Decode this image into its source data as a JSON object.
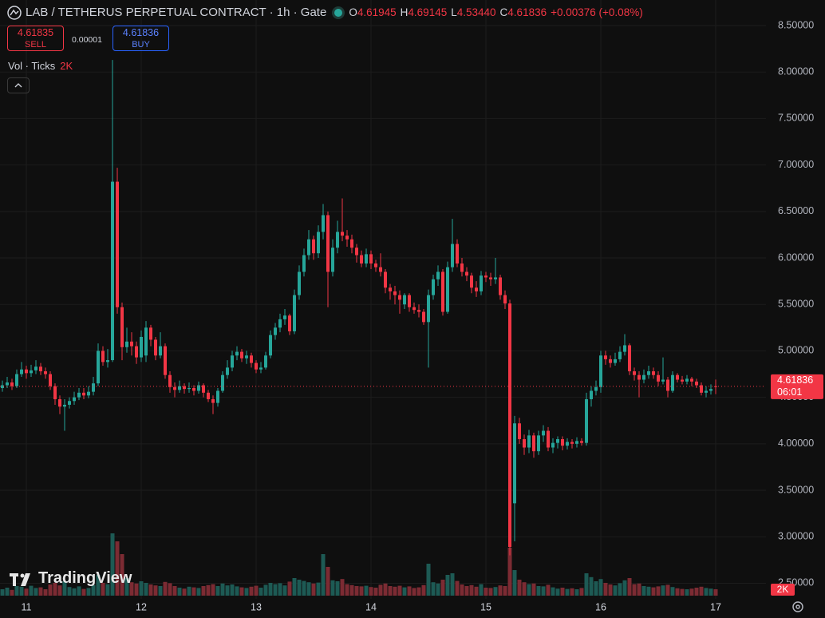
{
  "chart_data": {
    "type": "candlestick",
    "title": "LAB / TETHERUS PERPETUAL CONTRACT · 1h · Gate",
    "ohlc_legend": [
      {
        "key": "O",
        "value": "4.61945"
      },
      {
        "key": "H",
        "value": "4.69145"
      },
      {
        "key": "L",
        "value": "4.53440"
      },
      {
        "key": "C",
        "value": "4.61836"
      }
    ],
    "change": "+0.00376 (+0.08%)",
    "sell": {
      "price": "4.61835",
      "label": "SELL"
    },
    "spread": "0.00001",
    "buy": {
      "price": "4.61836",
      "label": "BUY"
    },
    "volume_legend": "Vol · Ticks",
    "last_volume_label": "2K",
    "countdown": "06:01",
    "watermark": "TradingView",
    "categories": [
      null,
      null,
      null,
      null,
      null,
      "11",
      null,
      null,
      null,
      null,
      null,
      null,
      null,
      null,
      null,
      null,
      null,
      null,
      null,
      null,
      null,
      null,
      null,
      null,
      null,
      null,
      null,
      null,
      null,
      "12",
      null,
      null,
      null,
      null,
      null,
      null,
      null,
      null,
      null,
      null,
      null,
      null,
      null,
      null,
      null,
      null,
      null,
      null,
      null,
      null,
      null,
      null,
      null,
      "13",
      null,
      null,
      null,
      null,
      null,
      null,
      null,
      null,
      null,
      null,
      null,
      null,
      null,
      null,
      null,
      null,
      null,
      null,
      null,
      null,
      null,
      null,
      null,
      "14",
      null,
      null,
      null,
      null,
      null,
      null,
      null,
      null,
      null,
      null,
      null,
      null,
      null,
      null,
      null,
      null,
      null,
      null,
      null,
      null,
      null,
      null,
      null,
      "15",
      null,
      null,
      null,
      null,
      null,
      null,
      null,
      null,
      null,
      null,
      null,
      null,
      null,
      null,
      null,
      null,
      null,
      null,
      null,
      null,
      null,
      null,
      null,
      "16",
      null,
      null,
      null,
      null,
      null,
      null,
      null,
      null,
      null,
      null,
      null,
      null,
      null,
      null,
      null,
      null,
      null,
      null,
      null,
      null,
      null,
      null,
      null,
      "17"
    ],
    "open": [
      4.6,
      4.63,
      4.66,
      4.62,
      4.75,
      4.8,
      4.76,
      4.79,
      4.83,
      4.78,
      4.75,
      4.62,
      4.48,
      4.4,
      4.42,
      4.46,
      4.5,
      4.55,
      4.52,
      4.56,
      4.65,
      5.0,
      4.88,
      4.9,
      6.82,
      5.47,
      5.04,
      5.1,
      5.05,
      4.93,
      4.95,
      5.25,
      5.12,
      4.95,
      5.05,
      4.74,
      4.61,
      4.58,
      4.62,
      4.59,
      4.6,
      4.57,
      4.63,
      4.55,
      4.48,
      4.44,
      4.57,
      4.74,
      4.82,
      4.95,
      4.99,
      4.92,
      4.95,
      4.87,
      4.8,
      4.82,
      4.95,
      5.17,
      5.25,
      5.34,
      5.38,
      5.21,
      5.6,
      5.85,
      6.03,
      6.2,
      6.05,
      6.28,
      6.46,
      5.85,
      6.11,
      6.28,
      6.24,
      6.2,
      6.11,
      6.03,
      5.94,
      6.04,
      5.94,
      5.9,
      5.85,
      5.68,
      5.64,
      5.6,
      5.5,
      5.6,
      5.47,
      5.44,
      5.42,
      5.31,
      5.6,
      5.77,
      5.85,
      5.42,
      5.9,
      6.15,
      5.94,
      5.85,
      5.81,
      5.68,
      5.64,
      5.81,
      5.79,
      5.77,
      5.79,
      5.6,
      5.51,
      3.36,
      4.22,
      4.05,
      3.96,
      4.09,
      3.92,
      4.09,
      4.14,
      3.96,
      4.01,
      4.05,
      3.98,
      4.02,
      4.0,
      4.03,
      4.01,
      4.48,
      4.57,
      4.61,
      4.95,
      4.91,
      4.87,
      4.91,
      4.99,
      5.06,
      4.78,
      4.74,
      4.69,
      4.74,
      4.78,
      4.74,
      4.67,
      4.69,
      4.57,
      4.74,
      4.69,
      4.67,
      4.7,
      4.67,
      4.63,
      4.55,
      4.57,
      4.61945
    ],
    "high": [
      4.68,
      4.72,
      4.7,
      4.8,
      4.88,
      4.84,
      4.85,
      4.9,
      4.87,
      4.82,
      4.78,
      4.65,
      4.52,
      4.48,
      4.5,
      4.56,
      4.6,
      4.6,
      4.62,
      4.72,
      5.08,
      5.05,
      5.02,
      8.13,
      6.97,
      5.52,
      5.25,
      5.2,
      5.1,
      5.22,
      5.32,
      5.28,
      5.15,
      5.2,
      5.08,
      4.78,
      4.66,
      4.68,
      4.65,
      4.66,
      4.63,
      4.67,
      4.65,
      4.58,
      4.52,
      4.6,
      4.78,
      4.9,
      5.0,
      5.05,
      5.02,
      5.0,
      4.98,
      4.9,
      4.88,
      4.99,
      5.22,
      5.3,
      5.4,
      5.45,
      5.4,
      5.66,
      5.92,
      6.1,
      6.3,
      6.24,
      6.35,
      6.58,
      6.5,
      6.2,
      6.4,
      6.64,
      6.3,
      6.25,
      6.15,
      6.08,
      6.1,
      6.08,
      5.98,
      6.05,
      5.88,
      5.72,
      5.7,
      5.65,
      5.62,
      5.62,
      5.52,
      5.5,
      5.45,
      5.66,
      5.82,
      5.92,
      5.88,
      5.96,
      6.42,
      6.2,
      6.0,
      5.9,
      5.84,
      5.75,
      5.86,
      5.85,
      5.84,
      6.0,
      5.82,
      5.65,
      5.55,
      4.3,
      4.28,
      4.1,
      4.15,
      4.12,
      4.14,
      4.2,
      4.18,
      4.06,
      4.08,
      4.08,
      4.06,
      4.05,
      4.07,
      4.06,
      4.55,
      4.62,
      4.68,
      5.0,
      5.0,
      4.95,
      4.98,
      5.05,
      5.18,
      5.08,
      4.82,
      4.78,
      4.8,
      4.84,
      4.82,
      4.78,
      4.93,
      4.72,
      4.78,
      4.76,
      4.73,
      4.74,
      4.72,
      4.7,
      4.66,
      4.62,
      4.64,
      4.69145
    ],
    "low": [
      4.56,
      4.6,
      4.58,
      4.6,
      4.72,
      4.7,
      4.72,
      4.75,
      4.74,
      4.7,
      4.58,
      4.42,
      4.32,
      4.14,
      4.38,
      4.42,
      4.47,
      4.48,
      4.49,
      4.52,
      4.62,
      4.84,
      4.82,
      4.88,
      5.4,
      4.9,
      4.98,
      4.95,
      4.86,
      4.88,
      4.88,
      5.05,
      4.9,
      4.92,
      4.7,
      4.55,
      4.5,
      4.55,
      4.54,
      4.55,
      4.52,
      4.54,
      4.5,
      4.45,
      4.32,
      4.4,
      4.55,
      4.7,
      4.78,
      4.9,
      4.88,
      4.86,
      4.82,
      4.76,
      4.76,
      4.8,
      4.92,
      5.12,
      5.2,
      5.28,
      5.17,
      5.18,
      5.55,
      5.8,
      5.98,
      5.98,
      6.0,
      6.2,
      5.47,
      5.8,
      6.05,
      6.18,
      6.12,
      6.05,
      5.95,
      5.9,
      5.9,
      5.88,
      5.85,
      5.8,
      5.62,
      5.55,
      5.5,
      5.4,
      5.45,
      5.42,
      5.4,
      5.36,
      5.28,
      4.82,
      5.55,
      5.7,
      5.38,
      5.4,
      5.85,
      5.9,
      5.8,
      5.75,
      5.62,
      5.58,
      5.6,
      5.74,
      5.7,
      5.72,
      5.55,
      5.45,
      2.8,
      2.95,
      4.0,
      3.88,
      3.9,
      3.85,
      3.88,
      4.02,
      3.92,
      3.9,
      3.95,
      3.93,
      3.94,
      3.95,
      3.96,
      3.98,
      3.98,
      4.4,
      4.52,
      4.55,
      4.85,
      4.82,
      4.84,
      4.88,
      4.95,
      4.74,
      4.68,
      4.5,
      4.65,
      4.7,
      4.7,
      4.62,
      4.64,
      4.5,
      4.55,
      4.66,
      4.64,
      4.64,
      4.62,
      4.6,
      4.52,
      4.5,
      4.53,
      4.5344
    ],
    "close": [
      4.63,
      4.66,
      4.62,
      4.75,
      4.8,
      4.76,
      4.79,
      4.83,
      4.78,
      4.75,
      4.62,
      4.48,
      4.4,
      4.42,
      4.46,
      4.5,
      4.55,
      4.52,
      4.56,
      4.65,
      5.0,
      4.88,
      4.9,
      6.82,
      5.47,
      5.04,
      5.1,
      5.05,
      4.93,
      5.15,
      5.25,
      5.12,
      4.95,
      5.05,
      4.74,
      4.61,
      4.58,
      4.62,
      4.59,
      4.6,
      4.57,
      4.63,
      4.55,
      4.48,
      4.44,
      4.57,
      4.74,
      4.82,
      4.95,
      4.99,
      4.92,
      4.95,
      4.87,
      4.8,
      4.82,
      4.95,
      5.17,
      5.25,
      5.34,
      5.38,
      5.21,
      5.6,
      5.85,
      6.03,
      6.2,
      6.05,
      6.28,
      6.46,
      5.85,
      6.11,
      6.28,
      6.24,
      6.2,
      6.11,
      6.03,
      5.94,
      6.04,
      5.94,
      5.9,
      5.85,
      5.68,
      5.64,
      5.6,
      5.55,
      5.6,
      5.47,
      5.44,
      5.42,
      5.31,
      5.6,
      5.77,
      5.85,
      5.42,
      5.9,
      6.15,
      5.94,
      5.85,
      5.81,
      5.68,
      5.64,
      5.81,
      5.79,
      5.77,
      5.79,
      5.6,
      5.51,
      2.89,
      4.22,
      4.05,
      3.96,
      4.09,
      3.92,
      4.09,
      4.14,
      3.96,
      4.01,
      4.05,
      3.98,
      4.02,
      4.0,
      4.03,
      4.01,
      4.48,
      4.57,
      4.61,
      4.95,
      4.91,
      4.87,
      4.91,
      4.99,
      5.06,
      4.78,
      4.74,
      4.69,
      4.74,
      4.78,
      4.74,
      4.67,
      4.69,
      4.57,
      4.74,
      4.69,
      4.67,
      4.7,
      4.67,
      4.63,
      4.55,
      4.57,
      4.59,
      4.61836
    ],
    "volume": [
      2000,
      2500,
      1800,
      3000,
      2800,
      2200,
      3100,
      2400,
      2600,
      2000,
      3500,
      4000,
      3200,
      4500,
      2700,
      2300,
      2900,
      2100,
      2400,
      3300,
      6500,
      4000,
      3600,
      19500,
      17000,
      13000,
      5500,
      4200,
      3800,
      4500,
      4000,
      3500,
      3200,
      3000,
      4300,
      3900,
      3000,
      2500,
      2200,
      2800,
      2600,
      2400,
      3000,
      3300,
      3600,
      3000,
      3800,
      3200,
      3500,
      2900,
      2600,
      2400,
      2800,
      3100,
      2500,
      3400,
      4000,
      3600,
      3900,
      3200,
      4400,
      5500,
      5000,
      4600,
      4200,
      3800,
      4100,
      13000,
      9000,
      4800,
      4500,
      5200,
      3600,
      3300,
      3000,
      2900,
      3100,
      2700,
      2500,
      3400,
      3800,
      3000,
      2800,
      3100,
      2600,
      2900,
      2400,
      2600,
      3300,
      10000,
      4200,
      3800,
      5000,
      6500,
      7000,
      4600,
      3500,
      3000,
      3300,
      2800,
      3600,
      2500,
      2400,
      2700,
      3200,
      3000,
      15000,
      8000,
      5000,
      4200,
      3600,
      3800,
      3000,
      2900,
      3400,
      2600,
      2200,
      2500,
      2100,
      2300,
      2000,
      2400,
      7000,
      5800,
      4500,
      5200,
      4000,
      3500,
      3200,
      3900,
      4800,
      5500,
      3600,
      3800,
      3000,
      2800,
      2600,
      2900,
      3200,
      3400,
      2700,
      2300,
      2100,
      2000,
      2200,
      2500,
      2800,
      2400,
      2200,
      2000
    ],
    "ylim": [
      2.332,
      8.775
    ],
    "yticks": [
      {
        "value": 8.5,
        "label": "8.50000"
      },
      {
        "value": 8.0,
        "label": "8.00000"
      },
      {
        "value": 7.5,
        "label": "7.50000"
      },
      {
        "value": 7.0,
        "label": "7.00000"
      },
      {
        "value": 6.5,
        "label": "6.50000"
      },
      {
        "value": 6.0,
        "label": "6.00000"
      },
      {
        "value": 5.5,
        "label": "5.50000"
      },
      {
        "value": 5.0,
        "label": "5.00000"
      },
      {
        "value": 4.5,
        "label": "4.50000"
      },
      {
        "value": 4.0,
        "label": "4.00000"
      },
      {
        "value": 3.5,
        "label": "3.50000"
      },
      {
        "value": 3.0,
        "label": "3.00000"
      },
      {
        "value": 2.5,
        "label": "2.50000"
      }
    ],
    "vlim": [
      0,
      25000
    ],
    "grid": true,
    "up_color": "#26a69a",
    "down_color": "#f23645",
    "volume_up_color": "#1d5a54",
    "volume_down_color": "#7c2b33"
  }
}
